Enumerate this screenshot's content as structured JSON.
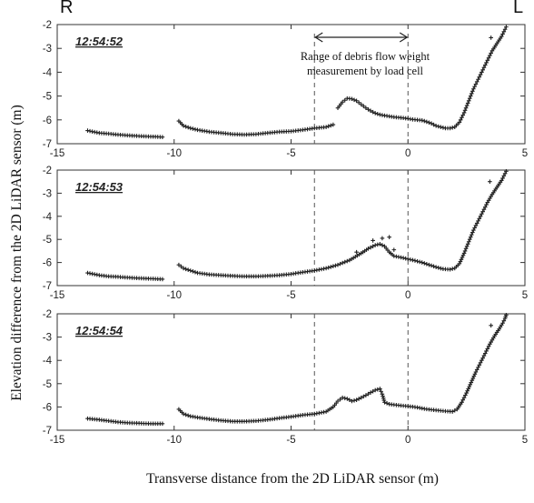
{
  "corner_labels": {
    "left": "R",
    "right": "L"
  },
  "annotation": {
    "line1": "Range of debris flow weight",
    "line2": "measurement by load cell",
    "x_range": [
      -4,
      0
    ]
  },
  "axes": {
    "xlabel": "Transverse distance from the 2D LiDAR sensor (m)",
    "ylabel": "Elevation difference from the 2D LiDAR sensor (m)"
  },
  "chart_data": [
    {
      "type": "scatter",
      "title": "12:54:52",
      "xlim": [
        -15,
        5
      ],
      "ylim": [
        -7,
        -2
      ],
      "xticks": [
        -15,
        -10,
        -5,
        0,
        5
      ],
      "yticks": [
        -2,
        -3,
        -4,
        -5,
        -6,
        -7
      ],
      "vlines": [
        -4,
        0
      ],
      "segments": [
        [
          [
            -13.7,
            -6.45
          ],
          [
            -13.2,
            -6.55
          ],
          [
            -12.8,
            -6.58
          ],
          [
            -12.4,
            -6.62
          ],
          [
            -12.0,
            -6.65
          ],
          [
            -11.5,
            -6.68
          ],
          [
            -11.0,
            -6.7
          ],
          [
            -10.5,
            -6.72
          ]
        ],
        [
          [
            -9.8,
            -6.05
          ],
          [
            -9.6,
            -6.25
          ],
          [
            -9.3,
            -6.35
          ],
          [
            -9.0,
            -6.42
          ],
          [
            -8.5,
            -6.5
          ],
          [
            -8.0,
            -6.55
          ],
          [
            -7.5,
            -6.6
          ],
          [
            -7.0,
            -6.62
          ],
          [
            -6.5,
            -6.6
          ],
          [
            -6.0,
            -6.55
          ],
          [
            -5.5,
            -6.5
          ],
          [
            -5.0,
            -6.48
          ],
          [
            -4.5,
            -6.42
          ],
          [
            -4.0,
            -6.35
          ],
          [
            -3.5,
            -6.3
          ],
          [
            -3.2,
            -6.2
          ]
        ],
        [
          [
            -3.0,
            -5.5
          ],
          [
            -2.8,
            -5.25
          ],
          [
            -2.6,
            -5.1
          ],
          [
            -2.4,
            -5.12
          ],
          [
            -2.2,
            -5.2
          ],
          [
            -2.0,
            -5.35
          ],
          [
            -1.8,
            -5.5
          ],
          [
            -1.6,
            -5.62
          ],
          [
            -1.4,
            -5.72
          ],
          [
            -1.2,
            -5.78
          ],
          [
            -1.0,
            -5.82
          ],
          [
            -0.8,
            -5.85
          ],
          [
            -0.6,
            -5.88
          ],
          [
            -0.4,
            -5.9
          ],
          [
            -0.2,
            -5.92
          ],
          [
            0.0,
            -5.95
          ],
          [
            0.2,
            -5.98
          ],
          [
            0.4,
            -6.0
          ],
          [
            0.6,
            -6.02
          ],
          [
            0.8,
            -6.08
          ],
          [
            1.0,
            -6.15
          ],
          [
            1.2,
            -6.25
          ],
          [
            1.4,
            -6.3
          ],
          [
            1.6,
            -6.35
          ],
          [
            1.8,
            -6.35
          ],
          [
            2.0,
            -6.3
          ],
          [
            2.2,
            -6.1
          ],
          [
            2.4,
            -5.7
          ],
          [
            2.6,
            -5.2
          ],
          [
            2.8,
            -4.7
          ],
          [
            3.0,
            -4.3
          ],
          [
            3.2,
            -3.9
          ],
          [
            3.4,
            -3.5
          ],
          [
            3.6,
            -3.1
          ],
          [
            3.8,
            -2.8
          ],
          [
            4.0,
            -2.5
          ],
          [
            4.1,
            -2.3
          ],
          [
            4.2,
            -2.1
          ]
        ]
      ],
      "outliers": [
        [
          3.55,
          -2.55
        ]
      ]
    },
    {
      "type": "scatter",
      "title": "12:54:53",
      "xlim": [
        -15,
        5
      ],
      "ylim": [
        -7,
        -2
      ],
      "xticks": [
        -15,
        -10,
        -5,
        0,
        5
      ],
      "yticks": [
        -2,
        -3,
        -4,
        -5,
        -6,
        -7
      ],
      "vlines": [
        -4,
        0
      ],
      "segments": [
        [
          [
            -13.7,
            -6.45
          ],
          [
            -13.2,
            -6.55
          ],
          [
            -12.8,
            -6.6
          ],
          [
            -12.4,
            -6.62
          ],
          [
            -12.0,
            -6.65
          ],
          [
            -11.5,
            -6.68
          ],
          [
            -11.0,
            -6.7
          ],
          [
            -10.5,
            -6.72
          ]
        ],
        [
          [
            -9.8,
            -6.1
          ],
          [
            -9.6,
            -6.25
          ],
          [
            -9.3,
            -6.35
          ],
          [
            -9.0,
            -6.45
          ],
          [
            -8.5,
            -6.52
          ],
          [
            -8.0,
            -6.55
          ],
          [
            -7.5,
            -6.58
          ],
          [
            -7.0,
            -6.6
          ],
          [
            -6.5,
            -6.6
          ],
          [
            -6.0,
            -6.58
          ],
          [
            -5.5,
            -6.55
          ],
          [
            -5.0,
            -6.5
          ],
          [
            -4.5,
            -6.42
          ],
          [
            -4.0,
            -6.35
          ],
          [
            -3.5,
            -6.25
          ],
          [
            -3.0,
            -6.1
          ],
          [
            -2.5,
            -5.9
          ],
          [
            -2.0,
            -5.6
          ],
          [
            -1.7,
            -5.4
          ],
          [
            -1.4,
            -5.25
          ],
          [
            -1.2,
            -5.2
          ],
          [
            -1.0,
            -5.3
          ],
          [
            -0.8,
            -5.55
          ],
          [
            -0.6,
            -5.72
          ],
          [
            -0.3,
            -5.78
          ],
          [
            0.0,
            -5.85
          ],
          [
            0.3,
            -5.92
          ],
          [
            0.6,
            -6.0
          ],
          [
            0.9,
            -6.1
          ],
          [
            1.2,
            -6.2
          ],
          [
            1.5,
            -6.28
          ],
          [
            1.8,
            -6.3
          ],
          [
            2.0,
            -6.25
          ],
          [
            2.2,
            -6.05
          ],
          [
            2.4,
            -5.6
          ],
          [
            2.6,
            -5.1
          ],
          [
            2.8,
            -4.6
          ],
          [
            3.0,
            -4.2
          ],
          [
            3.2,
            -3.8
          ],
          [
            3.4,
            -3.4
          ],
          [
            3.6,
            -3.05
          ],
          [
            3.8,
            -2.75
          ],
          [
            4.0,
            -2.45
          ],
          [
            4.1,
            -2.25
          ],
          [
            4.2,
            -2.05
          ]
        ]
      ],
      "outliers": [
        [
          -1.1,
          -4.95
        ],
        [
          -0.8,
          -4.9
        ],
        [
          -1.5,
          -5.05
        ],
        [
          -2.2,
          -5.55
        ],
        [
          -0.6,
          -5.45
        ],
        [
          3.5,
          -2.5
        ]
      ]
    },
    {
      "type": "scatter",
      "title": "12:54:54",
      "xlim": [
        -15,
        5
      ],
      "ylim": [
        -7,
        -2
      ],
      "xticks": [
        -15,
        -10,
        -5,
        0,
        5
      ],
      "yticks": [
        -2,
        -3,
        -4,
        -5,
        -6,
        -7
      ],
      "vlines": [
        -4,
        0
      ],
      "segments": [
        [
          [
            -13.7,
            -6.5
          ],
          [
            -13.2,
            -6.55
          ],
          [
            -12.8,
            -6.6
          ],
          [
            -12.4,
            -6.65
          ],
          [
            -12.0,
            -6.68
          ],
          [
            -11.5,
            -6.7
          ],
          [
            -11.0,
            -6.72
          ],
          [
            -10.5,
            -6.72
          ]
        ],
        [
          [
            -9.8,
            -6.1
          ],
          [
            -9.6,
            -6.3
          ],
          [
            -9.3,
            -6.4
          ],
          [
            -9.0,
            -6.45
          ],
          [
            -8.5,
            -6.52
          ],
          [
            -8.0,
            -6.58
          ],
          [
            -7.5,
            -6.62
          ],
          [
            -7.0,
            -6.62
          ],
          [
            -6.5,
            -6.6
          ],
          [
            -6.0,
            -6.55
          ],
          [
            -5.5,
            -6.48
          ],
          [
            -5.0,
            -6.42
          ],
          [
            -4.5,
            -6.35
          ],
          [
            -4.0,
            -6.3
          ],
          [
            -3.5,
            -6.2
          ],
          [
            -3.2,
            -6.0
          ],
          [
            -3.0,
            -5.75
          ],
          [
            -2.8,
            -5.6
          ],
          [
            -2.6,
            -5.65
          ],
          [
            -2.4,
            -5.75
          ],
          [
            -2.2,
            -5.7
          ],
          [
            -2.0,
            -5.6
          ],
          [
            -1.8,
            -5.5
          ],
          [
            -1.6,
            -5.38
          ],
          [
            -1.4,
            -5.28
          ],
          [
            -1.2,
            -5.22
          ],
          [
            -1.1,
            -5.45
          ],
          [
            -1.0,
            -5.8
          ],
          [
            -0.8,
            -5.88
          ],
          [
            -0.5,
            -5.92
          ],
          [
            -0.2,
            -5.95
          ],
          [
            0.1,
            -5.98
          ],
          [
            0.4,
            -6.02
          ],
          [
            0.7,
            -6.08
          ],
          [
            1.0,
            -6.12
          ],
          [
            1.3,
            -6.15
          ],
          [
            1.6,
            -6.18
          ],
          [
            1.9,
            -6.2
          ],
          [
            2.1,
            -6.1
          ],
          [
            2.3,
            -5.8
          ],
          [
            2.5,
            -5.4
          ],
          [
            2.7,
            -4.95
          ],
          [
            2.9,
            -4.5
          ],
          [
            3.1,
            -4.1
          ],
          [
            3.3,
            -3.7
          ],
          [
            3.5,
            -3.3
          ],
          [
            3.7,
            -2.95
          ],
          [
            3.9,
            -2.65
          ],
          [
            4.05,
            -2.4
          ],
          [
            4.15,
            -2.2
          ],
          [
            4.2,
            -2.05
          ]
        ]
      ],
      "outliers": [
        [
          3.55,
          -2.5
        ]
      ]
    }
  ]
}
